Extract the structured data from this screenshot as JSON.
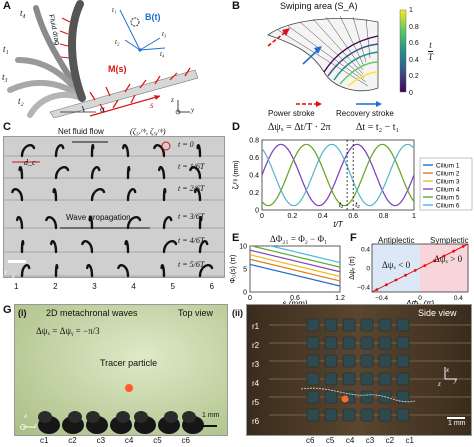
{
  "panelA": {
    "label": "A",
    "t4": "t₄",
    "t1": "t₁",
    "t3": "t₃",
    "t2": "t₂",
    "fluid_drag": "Fluid drag",
    "small_t1": "t₁",
    "small_t2": "t₂",
    "small_t3": "t₃",
    "small_t4": "t₄",
    "B_t": "B(t)",
    "M_s": "M(s)",
    "s": "s",
    "alpha": "α",
    "axis_z": "z",
    "axis_y": "y"
  },
  "panelB": {
    "label": "B",
    "title": "Swiping area (S_A)",
    "colorbar_ticks": [
      "1",
      "0.8",
      "0.6",
      "0.4",
      "0.2",
      "0"
    ],
    "colorbar_label_num": "t",
    "colorbar_label_den": "T",
    "power_stroke": "Power stroke",
    "recovery_stroke": "Recovery stroke"
  },
  "panelC": {
    "label": "C",
    "net_fluid_flow": "Net fluid flow",
    "tip_label": "(ζ₅ₓᵗⁱᵖ, ζ₅ᵧᵗⁱᵖ)",
    "dc": "d_c",
    "wave_propagation": "Wave propagation",
    "times": [
      "t = 0",
      "t = 1/6T",
      "t = 2/6T",
      "t = 3/6T",
      "t = 4/6T",
      "t = 5/6T"
    ],
    "cilia_numbers": [
      "1",
      "2",
      "3",
      "4",
      "5",
      "6"
    ],
    "axis_y": "y",
    "axis_z": "z"
  },
  "panelD": {
    "label": "D",
    "annotation_left": "Δψₓ = Δt/T · 2π",
    "annotation_right": "Δt = t₂ − t₁",
    "t1": "t₁",
    "t2": "t₂",
    "legend": [
      "Cilium 1",
      "Cilium 2",
      "Cilium 3",
      "Cilium 4",
      "Cilium 5",
      "Cilium 6"
    ]
  },
  "panelE": {
    "label": "E",
    "annotation": "ΔΦ₂₁ = Φ₂ − Φ₁"
  },
  "panelF": {
    "label": "F",
    "antiplectic": "Antiplectic",
    "symplectic": "Symplectic",
    "neg": "Δψₓ < 0",
    "pos": "Δψₓ > 0"
  },
  "panelG": {
    "label": "G",
    "sub_i": "(i)",
    "title_i": "2D metachronal waves",
    "top_view": "Top view",
    "phase": "Δψₓ = Δψᵧ = −π/3",
    "tracer": "Tracer particle",
    "scale": "1 mm",
    "cols": [
      "c1",
      "c2",
      "c3",
      "c4",
      "c5",
      "c6"
    ],
    "sub_ii": "(ii)",
    "side_view": "Side view",
    "rows": [
      "r1",
      "r2",
      "r3",
      "r4",
      "r5",
      "r6"
    ],
    "cols_ii": [
      "c6",
      "c5",
      "c4",
      "c3",
      "c2",
      "c1"
    ],
    "axis_x": "x",
    "axis_y": "y",
    "axis_z": "z"
  },
  "chart_data": [
    {
      "type": "line",
      "panel": "D",
      "xlabel": "t/T",
      "ylabel": "ζₓᵗⁱᵖ (mm)",
      "xlim": [
        0,
        1
      ],
      "ylim": [
        0,
        0.8
      ],
      "xticks": [
        "0",
        "0.2",
        "0.4",
        "0.6",
        "0.8",
        "1"
      ],
      "yticks": [
        "0",
        "0.2",
        "0.4",
        "0.6",
        "0.8"
      ],
      "marked_t1": 0.56,
      "marked_t2": 0.6,
      "series": [
        {
          "name": "Cilium 1",
          "color": "#1f6fd0",
          "phase": 0.0
        },
        {
          "name": "Cilium 2",
          "color": "#e8741a",
          "phase": 0.1667
        },
        {
          "name": "Cilium 3",
          "color": "#e6c020",
          "phase": 0.3333
        },
        {
          "name": "Cilium 4",
          "color": "#8e3fbf",
          "phase": 0.5
        },
        {
          "name": "Cilium 5",
          "color": "#5aae2c",
          "phase": 0.6667
        },
        {
          "name": "Cilium 6",
          "color": "#45b8e0",
          "phase": 0.8333
        }
      ]
    },
    {
      "type": "line",
      "panel": "E",
      "xlabel": "s (mm)",
      "ylabel": "Φ₍₎(s) (π)",
      "xlim": [
        0,
        1.2
      ],
      "xticks": [
        "0",
        "0.6",
        "1.2"
      ],
      "yticks": [
        "0",
        "5",
        "10"
      ],
      "ylim": [
        0,
        10
      ],
      "series": [
        {
          "color": "#1f6fd0",
          "start": 6.0,
          "end": 1.3
        },
        {
          "color": "#e8741a",
          "start": 7.1,
          "end": 2.4
        },
        {
          "color": "#e6c020",
          "start": 8.1,
          "end": 3.4
        },
        {
          "color": "#8e3fbf",
          "start": 9.1,
          "end": 4.4
        },
        {
          "color": "#5aae2c",
          "start": 10.1,
          "end": 5.4
        },
        {
          "color": "#45b8e0",
          "start": 11.1,
          "end": 6.4
        }
      ]
    },
    {
      "type": "scatter",
      "panel": "F",
      "xlabel": "ΔΦₓ (π)",
      "ylabel": "Δψₓ (π)",
      "xticks": [
        "−0.4",
        "0",
        "0.4"
      ],
      "yticks": [
        "−0.4",
        "0",
        "0.4"
      ],
      "xlim": [
        -0.5,
        0.5
      ],
      "ylim": [
        -0.5,
        0.5
      ],
      "x": [
        -0.45,
        -0.35,
        -0.25,
        -0.15,
        -0.05,
        0.05,
        0.15,
        0.25,
        0.35,
        0.45
      ],
      "y": [
        -0.45,
        -0.35,
        -0.25,
        -0.15,
        -0.05,
        0.05,
        0.15,
        0.25,
        0.35,
        0.45
      ]
    }
  ]
}
